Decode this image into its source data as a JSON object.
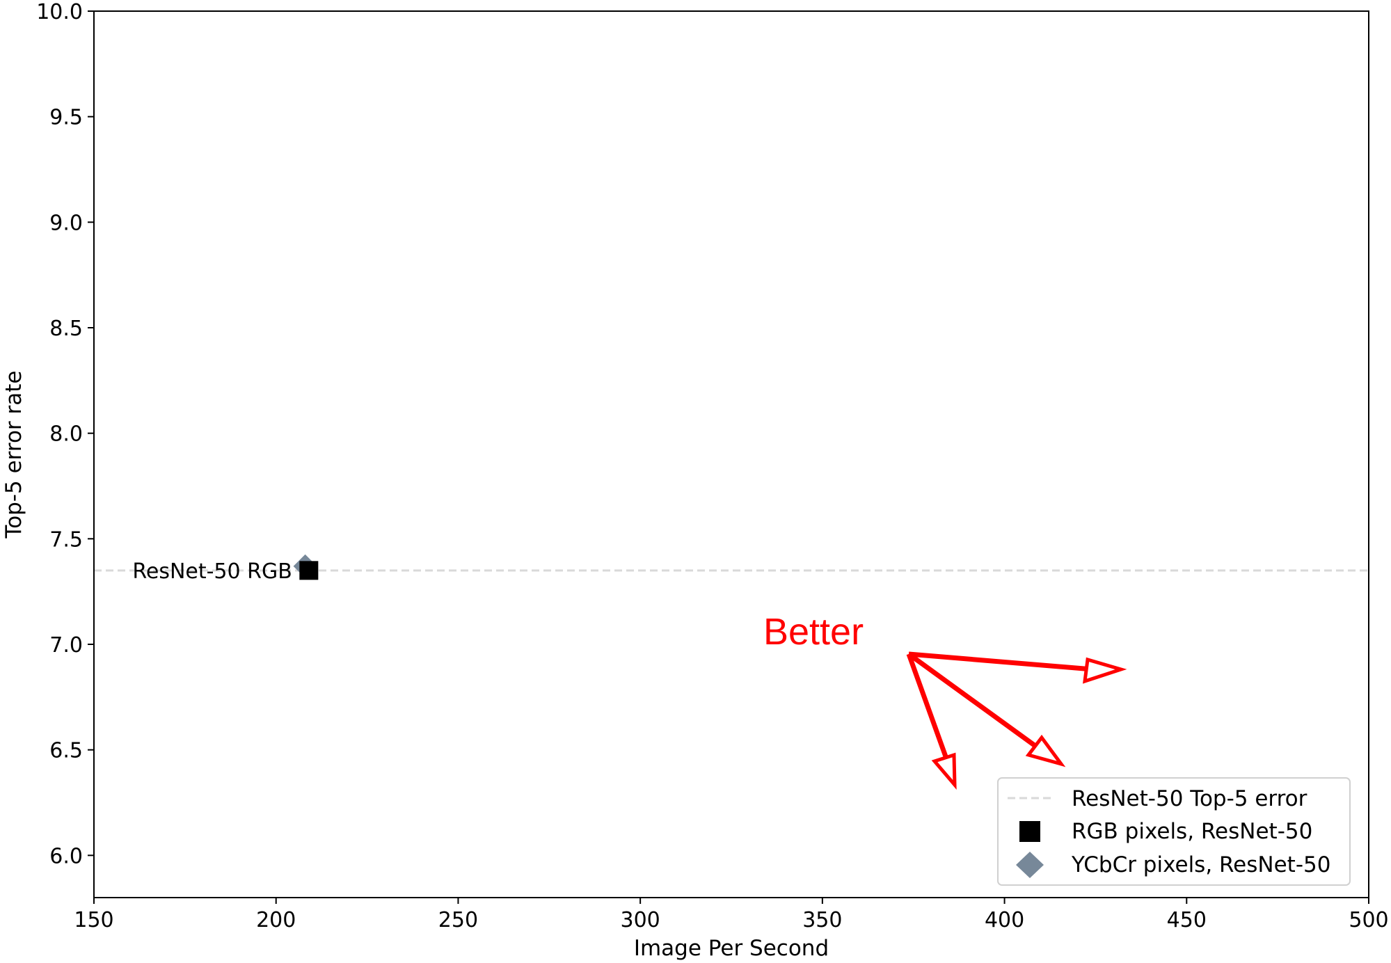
{
  "chart_data": {
    "type": "scatter",
    "xlabel": "Image Per Second",
    "ylabel": "Top-5 error rate",
    "xlim": [
      150,
      500
    ],
    "ylim": [
      5.8,
      10.0
    ],
    "xticks": [
      "150",
      "200",
      "250",
      "300",
      "350",
      "400",
      "450",
      "500"
    ],
    "yticks": [
      "6.0",
      "6.5",
      "7.0",
      "7.5",
      "8.0",
      "8.5",
      "9.0",
      "9.5",
      "10.0"
    ],
    "grid": false,
    "legend_position": "bottom-right",
    "reference_line": {
      "name": "ResNet-50 Top-5 error",
      "y": 7.35,
      "color": "#d9d9d9",
      "style": "dashed"
    },
    "series": [
      {
        "name": "RGB pixels, ResNet-50",
        "marker": "square",
        "color": "#000000",
        "points": [
          {
            "x": 209,
            "y": 7.35
          }
        ]
      },
      {
        "name": "YCbCr pixels, ResNet-50",
        "marker": "diamond",
        "color": "#778899",
        "points": [
          {
            "x": 208,
            "y": 7.37
          }
        ]
      }
    ],
    "annotations": {
      "point_label": {
        "text": "ResNet-50 RGB",
        "x": 209,
        "y": 7.35
      },
      "better": {
        "text": "Better",
        "color": "#ff0000"
      }
    }
  }
}
